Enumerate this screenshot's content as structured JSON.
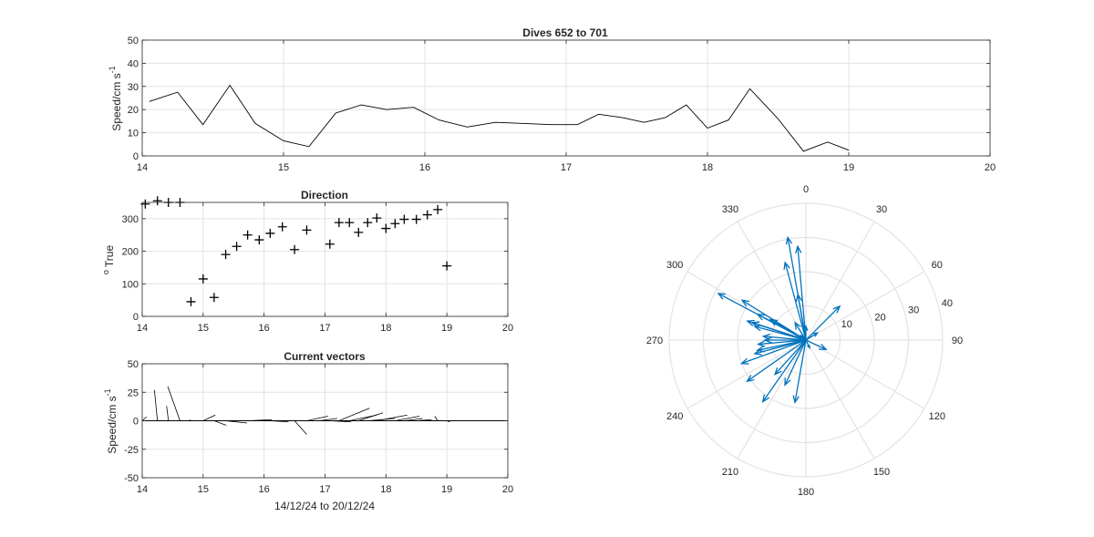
{
  "colors": {
    "grid": "#e3e3e3",
    "axis": "#262626",
    "arrow": "#0072bd",
    "background": "#ffffff"
  },
  "chart_data": [
    {
      "id": "speed",
      "type": "line",
      "title": "Dives 652 to 701",
      "ylabel": "Speed/cm s",
      "ylabel_exponent": "-1",
      "xlabel": "",
      "xlim": [
        14,
        20
      ],
      "ylim": [
        0,
        50
      ],
      "xticks": [
        "14",
        "15",
        "16",
        "17",
        "18",
        "19",
        "20"
      ],
      "yticks": [
        "0",
        "10",
        "20",
        "30",
        "40",
        "50"
      ],
      "grid": true,
      "series": [
        {
          "x": [
            14.05,
            14.25,
            14.43,
            14.62,
            14.8,
            15.0,
            15.18,
            15.37,
            15.55,
            15.73,
            15.92,
            16.1,
            16.3,
            16.5,
            16.7,
            16.9,
            17.08,
            17.23,
            17.4,
            17.55,
            17.7,
            17.85,
            18.0,
            18.15,
            18.3,
            18.5,
            18.68,
            18.85,
            19.0
          ],
          "y": [
            23.5,
            27.5,
            13.5,
            30.5,
            14,
            6.5,
            4,
            18.5,
            22,
            20,
            21,
            15.5,
            12.5,
            14.5,
            14,
            13.5,
            13.5,
            18,
            16.5,
            14.5,
            16.5,
            22,
            12,
            15.5,
            29,
            16,
            2,
            6,
            2.5
          ]
        }
      ]
    },
    {
      "id": "direction",
      "type": "scatter",
      "title": "Direction",
      "ylabel": "True",
      "ylabel_prefix": "o",
      "xlim": [
        14,
        20
      ],
      "ylim": [
        0,
        350
      ],
      "xticks": [
        "14",
        "15",
        "16",
        "17",
        "18",
        "19",
        "20"
      ],
      "yticks": [
        "0",
        "100",
        "200",
        "300"
      ],
      "grid": true,
      "marker": "+",
      "series": [
        {
          "x": [
            14.05,
            14.25,
            14.43,
            14.62,
            14.8,
            15.0,
            15.18,
            15.37,
            15.55,
            15.73,
            15.92,
            16.1,
            16.3,
            16.5,
            16.7,
            17.08,
            17.23,
            17.4,
            17.55,
            17.7,
            17.85,
            18.0,
            18.15,
            18.3,
            18.5,
            18.68,
            18.85,
            19.0
          ],
          "y": [
            345,
            355,
            350,
            350,
            45,
            115,
            58,
            190,
            215,
            250,
            235,
            255,
            275,
            205,
            265,
            222,
            288,
            288,
            258,
            288,
            302,
            270,
            285,
            298,
            298,
            312,
            328,
            155
          ]
        }
      ]
    },
    {
      "id": "vectors",
      "type": "quiver",
      "title": "Current vectors",
      "ylabel": "Speed/cm s",
      "ylabel_exponent": "-1",
      "xlabel": "14/12/24 to 20/12/24",
      "xlim": [
        14,
        20
      ],
      "ylim": [
        -50,
        50
      ],
      "xticks": [
        "14",
        "15",
        "16",
        "17",
        "18",
        "19",
        "20"
      ],
      "yticks": [
        "-50",
        "-25",
        "0",
        "25",
        "50"
      ],
      "grid": true,
      "vectors": [
        {
          "x": 14.0,
          "u": 0.07,
          "v": 3.5
        },
        {
          "x": 14.25,
          "u": -0.05,
          "v": 27
        },
        {
          "x": 14.43,
          "u": -0.03,
          "v": 13
        },
        {
          "x": 14.62,
          "u": -0.2,
          "v": 30
        },
        {
          "x": 14.8,
          "u": -0.02,
          "v": 1
        },
        {
          "x": 15.0,
          "u": 0.2,
          "v": 5
        },
        {
          "x": 15.18,
          "u": 0.2,
          "v": -4
        },
        {
          "x": 15.37,
          "u": 0.35,
          "v": -2
        },
        {
          "x": 15.55,
          "u": 0.45,
          "v": 0
        },
        {
          "x": 15.73,
          "u": 0.4,
          "v": 1
        },
        {
          "x": 15.92,
          "u": 0.35,
          "v": 0
        },
        {
          "x": 16.1,
          "u": 0.3,
          "v": -1
        },
        {
          "x": 16.3,
          "u": 0.25,
          "v": 0
        },
        {
          "x": 16.5,
          "u": 0.2,
          "v": -12
        },
        {
          "x": 16.7,
          "u": 0.35,
          "v": 4
        },
        {
          "x": 16.9,
          "u": 0.3,
          "v": 2
        },
        {
          "x": 17.08,
          "u": 0.35,
          "v": -1
        },
        {
          "x": 17.23,
          "u": 0.5,
          "v": 11
        },
        {
          "x": 17.4,
          "u": 0.45,
          "v": 5
        },
        {
          "x": 17.55,
          "u": 0.4,
          "v": 7
        },
        {
          "x": 17.7,
          "u": 0.45,
          "v": 2
        },
        {
          "x": 17.85,
          "u": 0.5,
          "v": 5
        },
        {
          "x": 18.0,
          "u": 0.35,
          "v": 0
        },
        {
          "x": 18.15,
          "u": 0.4,
          "v": 4
        },
        {
          "x": 18.3,
          "u": 0.3,
          "v": 2
        },
        {
          "x": 18.5,
          "u": 0.25,
          "v": 1
        },
        {
          "x": 18.68,
          "u": 0.15,
          "v": 0
        },
        {
          "x": 18.85,
          "u": -0.05,
          "v": 4
        },
        {
          "x": 19.0,
          "u": 0.05,
          "v": -1
        }
      ]
    },
    {
      "id": "polar",
      "type": "compass",
      "title": "",
      "rlim": [
        0,
        40
      ],
      "rticks": [
        "10",
        "20",
        "30",
        "40"
      ],
      "theta_labels": [
        "0",
        "30",
        "60",
        "90",
        "120",
        "150",
        "180",
        "210",
        "240",
        "270",
        "300",
        "330"
      ],
      "theta_zero": "top",
      "theta_direction": "clockwise",
      "grid": true,
      "arrows": [
        {
          "dir": 345,
          "mag": 23.5
        },
        {
          "dir": 355,
          "mag": 27.5
        },
        {
          "dir": 350,
          "mag": 13.5
        },
        {
          "dir": 350,
          "mag": 30.5
        },
        {
          "dir": 45,
          "mag": 14
        },
        {
          "dir": 115,
          "mag": 6.5
        },
        {
          "dir": 58,
          "mag": 4
        },
        {
          "dir": 190,
          "mag": 18.5
        },
        {
          "dir": 215,
          "mag": 22
        },
        {
          "dir": 250,
          "mag": 20
        },
        {
          "dir": 235,
          "mag": 21
        },
        {
          "dir": 255,
          "mag": 15.5
        },
        {
          "dir": 275,
          "mag": 12.5
        },
        {
          "dir": 205,
          "mag": 14.5
        },
        {
          "dir": 265,
          "mag": 14
        },
        {
          "dir": 222,
          "mag": 13.5
        },
        {
          "dir": 288,
          "mag": 18
        },
        {
          "dir": 288,
          "mag": 16.5
        },
        {
          "dir": 258,
          "mag": 14.5
        },
        {
          "dir": 288,
          "mag": 16.5
        },
        {
          "dir": 302,
          "mag": 22
        },
        {
          "dir": 270,
          "mag": 12
        },
        {
          "dir": 285,
          "mag": 15.5
        },
        {
          "dir": 298,
          "mag": 29
        },
        {
          "dir": 298,
          "mag": 16
        },
        {
          "dir": 312,
          "mag": 2
        },
        {
          "dir": 328,
          "mag": 6
        },
        {
          "dir": 155,
          "mag": 2.5
        },
        {
          "dir": 300,
          "mag": 12
        },
        {
          "dir": 0,
          "mag": 4
        }
      ]
    }
  ]
}
